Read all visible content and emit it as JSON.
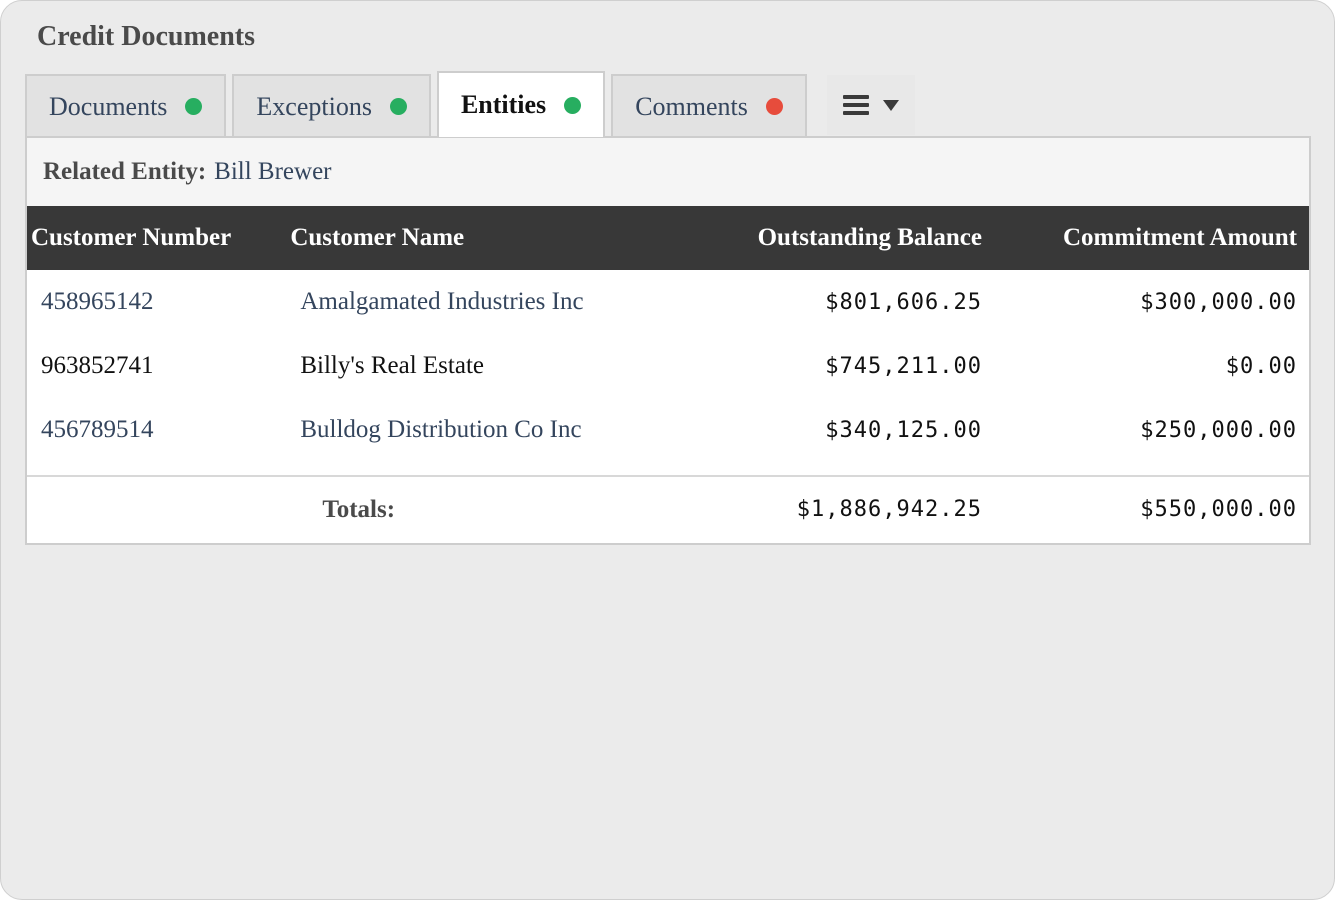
{
  "panel": {
    "title": "Credit Documents"
  },
  "tabs": [
    {
      "label": "Documents",
      "status_color": "#27ae60"
    },
    {
      "label": "Exceptions",
      "status_color": "#27ae60"
    },
    {
      "label": "Entities",
      "status_color": "#27ae60",
      "active": true
    },
    {
      "label": "Comments",
      "status_color": "#e74c3c"
    }
  ],
  "menu": {
    "icon": "hamburger-menu-icon",
    "caret_icon": "caret-down-icon"
  },
  "related_entity": {
    "label": "Related Entity:",
    "value": "Bill Brewer"
  },
  "table": {
    "columns": [
      "Customer Number",
      "Customer Name",
      "Outstanding Balance",
      "Commitment Amount"
    ],
    "rows": [
      {
        "customer_number": "458965142",
        "customer_name": "Amalgamated Industries Inc",
        "outstanding_balance": "$801,606.25",
        "commitment_amount": "$300,000.00",
        "linked": true
      },
      {
        "customer_number": "963852741",
        "customer_name": "Billy's Real Estate",
        "outstanding_balance": "$745,211.00",
        "commitment_amount": "$0.00",
        "linked": false
      },
      {
        "customer_number": "456789514",
        "customer_name": "Bulldog Distribution Co Inc",
        "outstanding_balance": "$340,125.00",
        "commitment_amount": "$250,000.00",
        "linked": true
      }
    ],
    "totals": {
      "label": "Totals:",
      "outstanding_balance": "$1,886,942.25",
      "commitment_amount": "$550,000.00"
    }
  },
  "colors": {
    "link": "#34455d",
    "header_bg": "#383838",
    "status_ok": "#27ae60",
    "status_alert": "#e74c3c"
  }
}
